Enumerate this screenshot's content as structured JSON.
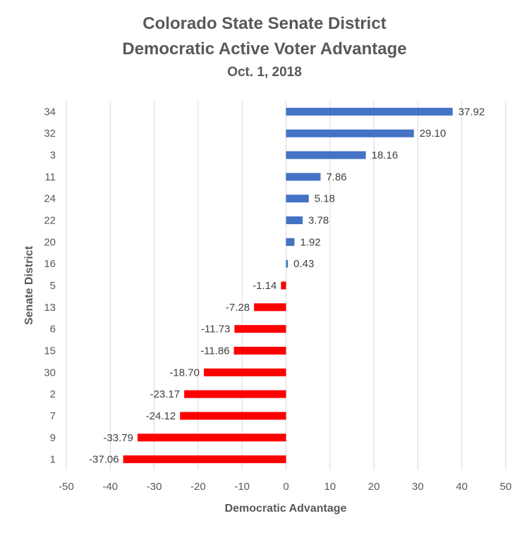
{
  "chart_data": {
    "type": "bar",
    "orientation": "horizontal",
    "title": "Colorado State Senate District",
    "subtitle": "Democratic Active Voter Advantage",
    "date": "Oct. 1, 2018",
    "xlabel": "Democratic Advantage",
    "ylabel": "Senate District",
    "xlim": [
      -50,
      50
    ],
    "xticks": [
      "-50",
      "-40",
      "-30",
      "-20",
      "-10",
      "0",
      "10",
      "20",
      "30",
      "40",
      "50"
    ],
    "grid": "vertical",
    "categories": [
      "34",
      "32",
      "3",
      "11",
      "24",
      "22",
      "20",
      "16",
      "5",
      "13",
      "6",
      "15",
      "30",
      "2",
      "7",
      "9",
      "1"
    ],
    "values": [
      37.92,
      29.1,
      18.16,
      7.86,
      5.18,
      3.78,
      1.92,
      0.43,
      -1.14,
      -7.28,
      -11.73,
      -11.86,
      -18.7,
      -23.17,
      -24.12,
      -33.79,
      -37.06
    ],
    "data_labels": [
      "37.92",
      "29.10",
      "18.16",
      "7.86",
      "5.18",
      "3.78",
      "1.92",
      "0.43",
      "-1.14",
      "-7.28",
      "-11.73",
      "-11.86",
      "-18.70",
      "-23.17",
      "-24.12",
      "-33.79",
      "-37.06"
    ],
    "colors": {
      "positive": "#4472C4",
      "negative": "#FF0000",
      "grid": "#D9D9D9"
    }
  }
}
